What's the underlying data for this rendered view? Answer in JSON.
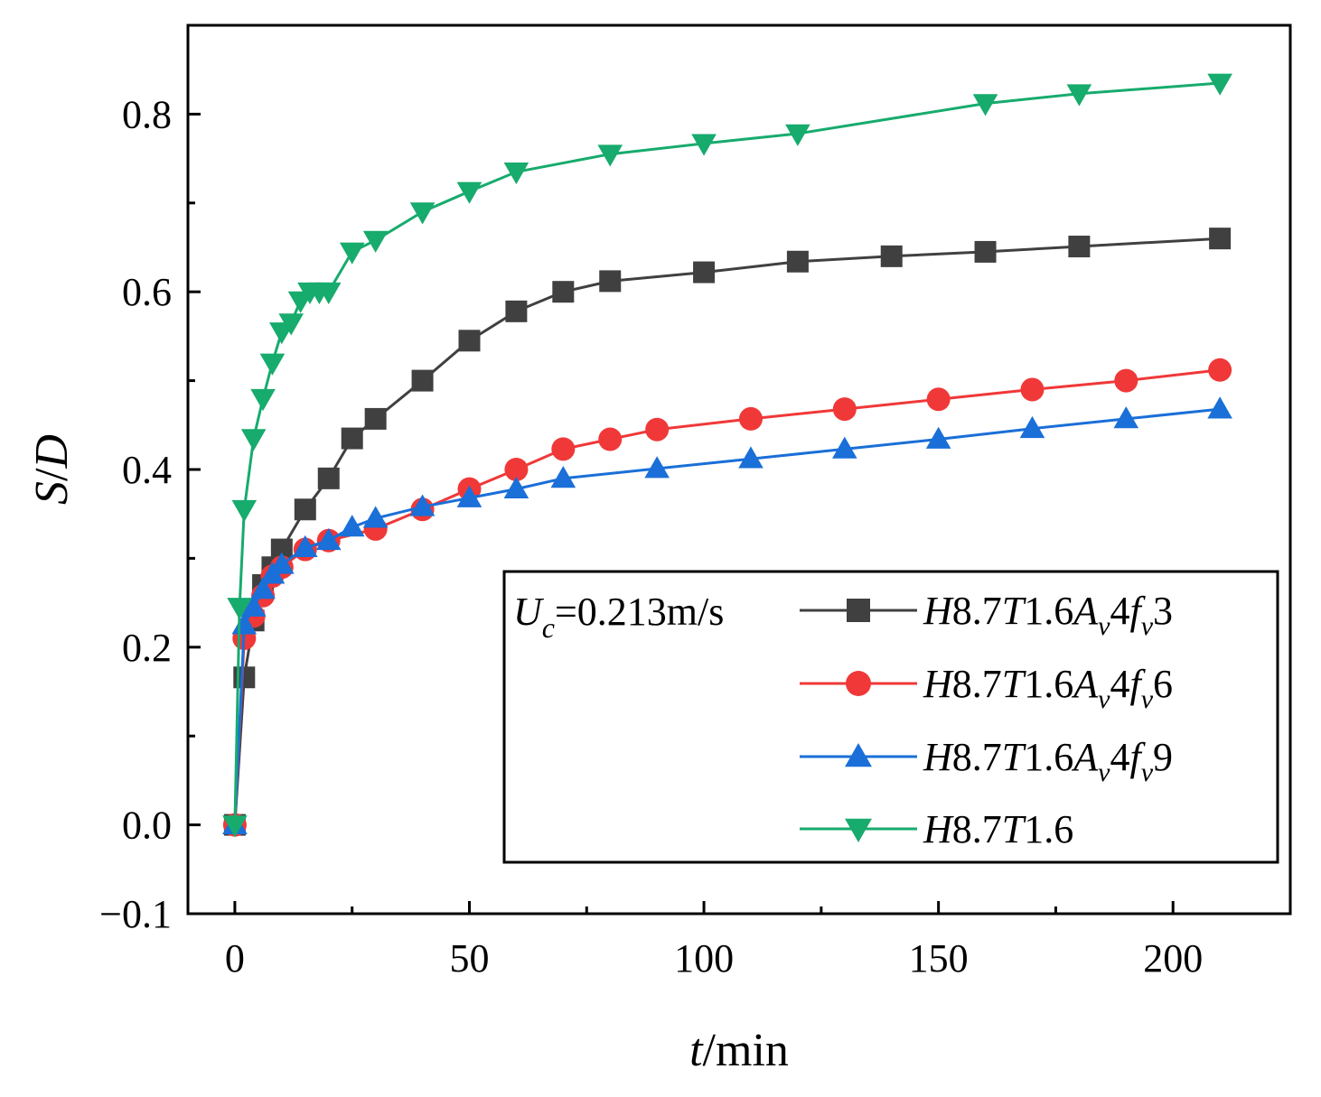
{
  "chart_data": {
    "type": "line",
    "xlabel": "t/min",
    "ylabel": "S/D",
    "xlim": [
      -10,
      225
    ],
    "ylim": [
      -0.1,
      0.9
    ],
    "xticks": [
      0,
      50,
      100,
      150,
      200
    ],
    "yticks": [
      -0.1,
      0.0,
      0.2,
      0.4,
      0.6,
      0.8
    ],
    "ytick_labels": [
      "−0.1",
      "0.0",
      "0.2",
      "0.4",
      "0.6",
      "0.8"
    ],
    "grid": false,
    "legend": {
      "placement": "bottom-right",
      "annotation": "Uc=0.213m/s"
    },
    "series": [
      {
        "name": "H8.7T1.6Av4fv3",
        "color": "#404040",
        "marker": "square",
        "x": [
          0,
          2,
          4,
          6,
          8,
          10,
          15,
          20,
          25,
          30,
          40,
          50,
          60,
          70,
          80,
          100,
          120,
          140,
          160,
          180,
          210
        ],
        "y": [
          0.0,
          0.166,
          0.23,
          0.27,
          0.29,
          0.31,
          0.355,
          0.39,
          0.435,
          0.457,
          0.5,
          0.545,
          0.578,
          0.6,
          0.612,
          0.622,
          0.634,
          0.64,
          0.645,
          0.651,
          0.66
        ]
      },
      {
        "name": "H8.7T1.6Av4fv6",
        "color": "#f03838",
        "marker": "circle",
        "x": [
          0,
          2,
          4,
          6,
          8,
          10,
          15,
          20,
          30,
          40,
          50,
          60,
          70,
          80,
          90,
          110,
          130,
          150,
          170,
          190,
          210
        ],
        "y": [
          0.0,
          0.21,
          0.235,
          0.258,
          0.28,
          0.29,
          0.31,
          0.32,
          0.333,
          0.355,
          0.378,
          0.4,
          0.423,
          0.434,
          0.445,
          0.457,
          0.468,
          0.479,
          0.49,
          0.5,
          0.512
        ]
      },
      {
        "name": "H8.7T1.6Av4fv9",
        "color": "#1a6fd8",
        "marker": "triangle-up",
        "x": [
          0,
          2,
          4,
          6,
          8,
          10,
          15,
          20,
          25,
          30,
          40,
          50,
          60,
          70,
          90,
          110,
          130,
          150,
          170,
          190,
          210
        ],
        "y": [
          0.0,
          0.225,
          0.245,
          0.265,
          0.282,
          0.293,
          0.312,
          0.32,
          0.335,
          0.345,
          0.358,
          0.368,
          0.378,
          0.39,
          0.401,
          0.412,
          0.423,
          0.434,
          0.446,
          0.457,
          0.468
        ]
      },
      {
        "name": "H8.7T1.6",
        "color": "#17ab6d",
        "marker": "triangle-down",
        "x": [
          0,
          1,
          2,
          4,
          6,
          8,
          10,
          12,
          14,
          16,
          18,
          20,
          25,
          30,
          40,
          50,
          60,
          80,
          100,
          120,
          160,
          180,
          210
        ],
        "y": [
          0.0,
          0.245,
          0.355,
          0.435,
          0.48,
          0.52,
          0.555,
          0.565,
          0.59,
          0.6,
          0.6,
          0.6,
          0.645,
          0.658,
          0.69,
          0.713,
          0.735,
          0.755,
          0.767,
          0.778,
          0.812,
          0.823,
          0.835
        ]
      }
    ]
  }
}
